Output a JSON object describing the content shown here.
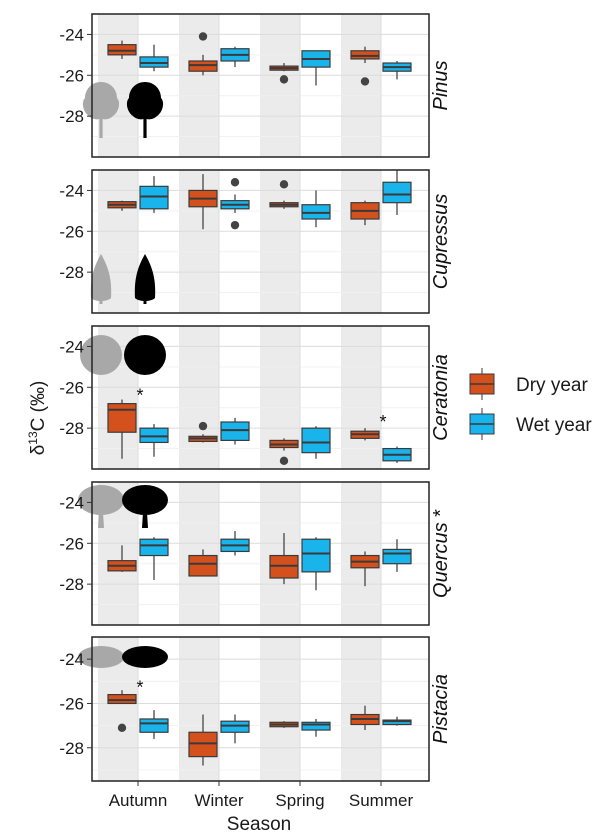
{
  "chart_data": {
    "type": "box",
    "xlabel": "Season",
    "ylabel_main": "δ",
    "ylabel_sup": "13",
    "ylabel_rest": "C (‰)",
    "categories": [
      "Autumn",
      "Winter",
      "Spring",
      "Summer"
    ],
    "legend": {
      "placement": "right",
      "entries": [
        {
          "name": "Dry year",
          "color": "#d4511e"
        },
        {
          "name": "Wet year",
          "color": "#1ab4ec"
        }
      ]
    },
    "colors": {
      "dry": "#d4511e",
      "wet": "#1ab4ec",
      "shade": "#ebebeb",
      "grid": "#dcdcdc",
      "outline": "#3a3a3a"
    },
    "y_ticks": [
      -24,
      -26,
      -28
    ],
    "panels": [
      {
        "name": "Pinus",
        "star": "",
        "ylim": [
          -30,
          -23
        ],
        "dry": [
          {
            "min": -25.2,
            "q1": -25.0,
            "med": -24.8,
            "q3": -24.5,
            "max": -24.3,
            "outliers": []
          },
          {
            "min": -26.0,
            "q1": -25.8,
            "med": -25.5,
            "q3": -25.3,
            "max": -25.0,
            "outliers": [
              -24.1
            ]
          },
          {
            "min": -25.8,
            "q1": -25.75,
            "med": -25.65,
            "q3": -25.55,
            "max": -25.4,
            "outliers": [
              -26.2
            ]
          },
          {
            "min": -25.4,
            "q1": -25.2,
            "med": -25.05,
            "q3": -24.8,
            "max": -24.6,
            "outliers": [
              -26.3
            ]
          }
        ],
        "wet": [
          {
            "min": -25.8,
            "q1": -25.6,
            "med": -25.4,
            "q3": -25.1,
            "max": -24.5,
            "outliers": []
          },
          {
            "min": -25.6,
            "q1": -25.3,
            "med": -25.0,
            "q3": -24.7,
            "max": -24.6,
            "outliers": []
          },
          {
            "min": -26.5,
            "q1": -25.6,
            "med": -25.2,
            "q3": -24.8,
            "max": -24.8,
            "outliers": []
          },
          {
            "min": -26.2,
            "q1": -25.8,
            "med": -25.6,
            "q3": -25.4,
            "max": -25.3,
            "outliers": []
          }
        ],
        "stars": []
      },
      {
        "name": "Cupressus",
        "star": "",
        "ylim": [
          -30,
          -23
        ],
        "dry": [
          {
            "min": -25.0,
            "q1": -24.85,
            "med": -24.7,
            "q3": -24.55,
            "max": -24.5,
            "outliers": []
          },
          {
            "min": -25.9,
            "q1": -24.8,
            "med": -24.4,
            "q3": -24.0,
            "max": -23.2,
            "outliers": []
          },
          {
            "min": -24.9,
            "q1": -24.8,
            "med": -24.7,
            "q3": -24.6,
            "max": -24.5,
            "outliers": [
              -23.7
            ]
          },
          {
            "min": -25.7,
            "q1": -25.4,
            "med": -25.0,
            "q3": -24.6,
            "max": -24.5,
            "outliers": []
          }
        ],
        "wet": [
          {
            "min": -25.1,
            "q1": -24.9,
            "med": -24.3,
            "q3": -23.8,
            "max": -23.3,
            "outliers": []
          },
          {
            "min": -25.1,
            "q1": -24.9,
            "med": -24.7,
            "q3": -24.5,
            "max": -24.2,
            "outliers": [
              -25.7,
              -23.6
            ]
          },
          {
            "min": -25.8,
            "q1": -25.4,
            "med": -25.1,
            "q3": -24.7,
            "max": -24.0,
            "outliers": []
          },
          {
            "min": -25.2,
            "q1": -24.6,
            "med": -24.2,
            "q3": -23.6,
            "max": -23.0,
            "outliers": []
          }
        ],
        "stars": []
      },
      {
        "name": "Ceratonia",
        "star": "",
        "ylim": [
          -30,
          -23
        ],
        "dry": [
          {
            "min": -29.5,
            "q1": -28.2,
            "med": -27.1,
            "q3": -26.8,
            "max": -26.6,
            "outliers": []
          },
          {
            "min": -28.7,
            "q1": -28.65,
            "med": -28.5,
            "q3": -28.4,
            "max": -28.3,
            "outliers": [
              -27.9
            ]
          },
          {
            "min": -29.1,
            "q1": -28.95,
            "med": -28.8,
            "q3": -28.6,
            "max": -28.5,
            "outliers": [
              -29.6
            ]
          },
          {
            "min": -28.6,
            "q1": -28.5,
            "med": -28.3,
            "q3": -28.15,
            "max": -28.0,
            "outliers": []
          }
        ],
        "wet": [
          {
            "min": -29.4,
            "q1": -28.7,
            "med": -28.4,
            "q3": -28.0,
            "max": -27.8,
            "outliers": []
          },
          {
            "min": -28.8,
            "q1": -28.6,
            "med": -28.1,
            "q3": -27.7,
            "max": -27.5,
            "outliers": []
          },
          {
            "min": -29.5,
            "q1": -29.2,
            "med": -28.7,
            "q3": -28.0,
            "max": -27.9,
            "outliers": []
          },
          {
            "min": -29.7,
            "q1": -29.6,
            "med": -29.3,
            "q3": -29.0,
            "max": -28.9,
            "outliers": []
          }
        ],
        "stars": [
          {
            "season": 0,
            "value": -26.3
          },
          {
            "season": 3,
            "value": -27.6
          }
        ]
      },
      {
        "name": "Quercus",
        "star": "*",
        "ylim": [
          -30,
          -23
        ],
        "dry": [
          {
            "min": -27.4,
            "q1": -27.35,
            "med": -27.1,
            "q3": -26.85,
            "max": -26.1,
            "outliers": []
          },
          {
            "min": -27.6,
            "q1": -27.6,
            "med": -27.0,
            "q3": -26.6,
            "max": -26.3,
            "outliers": []
          },
          {
            "min": -28.0,
            "q1": -27.7,
            "med": -27.1,
            "q3": -26.6,
            "max": -25.5,
            "outliers": []
          },
          {
            "min": -28.1,
            "q1": -27.2,
            "med": -26.9,
            "q3": -26.6,
            "max": -26.4,
            "outliers": []
          }
        ],
        "wet": [
          {
            "min": -27.8,
            "q1": -26.6,
            "med": -26.1,
            "q3": -25.8,
            "max": -25.7,
            "outliers": []
          },
          {
            "min": -26.6,
            "q1": -26.4,
            "med": -26.1,
            "q3": -25.8,
            "max": -25.4,
            "outliers": []
          },
          {
            "min": -28.3,
            "q1": -27.4,
            "med": -26.5,
            "q3": -25.8,
            "max": -25.7,
            "outliers": []
          },
          {
            "min": -27.4,
            "q1": -27.0,
            "med": -26.5,
            "q3": -26.3,
            "max": -25.8,
            "outliers": []
          }
        ],
        "stars": []
      },
      {
        "name": "Pistacia",
        "star": "",
        "ylim": [
          -29.5,
          -23
        ],
        "dry": [
          {
            "min": -26.0,
            "q1": -26.0,
            "med": -25.85,
            "q3": -25.6,
            "max": -25.4,
            "outliers": [
              -27.1
            ]
          },
          {
            "min": -28.8,
            "q1": -28.4,
            "med": -27.8,
            "q3": -27.3,
            "max": -26.5,
            "outliers": []
          },
          {
            "min": -27.1,
            "q1": -27.05,
            "med": -26.95,
            "q3": -26.85,
            "max": -26.8,
            "outliers": []
          },
          {
            "min": -27.2,
            "q1": -26.95,
            "med": -26.7,
            "q3": -26.5,
            "max": -26.1,
            "outliers": []
          }
        ],
        "wet": [
          {
            "min": -27.6,
            "q1": -27.3,
            "med": -26.9,
            "q3": -26.7,
            "max": -26.3,
            "outliers": []
          },
          {
            "min": -27.8,
            "q1": -27.3,
            "med": -27.0,
            "q3": -26.8,
            "max": -26.5,
            "outliers": []
          },
          {
            "min": -27.5,
            "q1": -27.2,
            "med": -26.95,
            "q3": -26.85,
            "max": -26.7,
            "outliers": []
          },
          {
            "min": -27.0,
            "q1": -26.95,
            "med": -26.8,
            "q3": -26.75,
            "max": -26.6,
            "outliers": []
          }
        ],
        "stars": [
          {
            "season": 0,
            "value": -25.2
          }
        ]
      }
    ]
  }
}
